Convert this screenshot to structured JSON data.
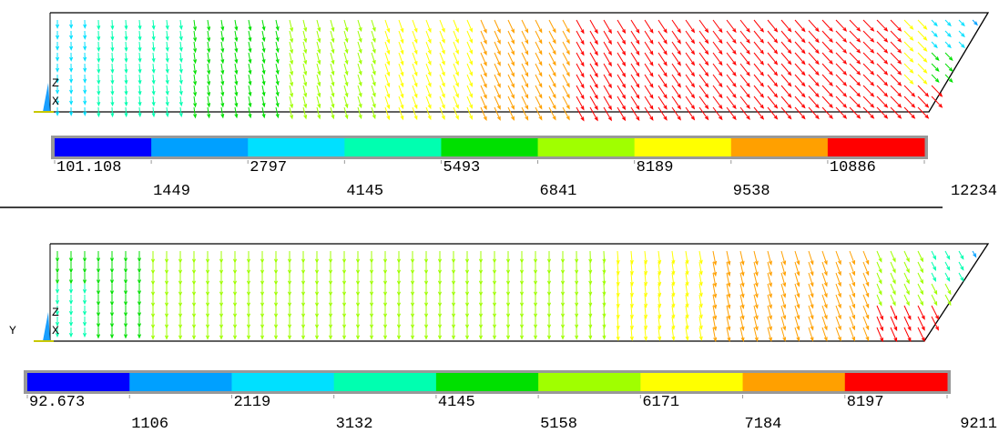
{
  "legend_colors": [
    "#0000ff",
    "#00a0ff",
    "#00e0ff",
    "#00ffb0",
    "#00e000",
    "#a0ff00",
    "#ffff00",
    "#ffa000",
    "#ff0000"
  ],
  "panels": [
    {
      "axis_labels": [
        "Z",
        "X"
      ],
      "legend_labels": [
        "101.108",
        "1449",
        "2797",
        "4145",
        "5493",
        "6841",
        "8189",
        "9538",
        "10886",
        "12234"
      ]
    },
    {
      "axis_labels": [
        "Y",
        "Z",
        "X"
      ],
      "legend_labels": [
        "92.673",
        "1106",
        "2119",
        "3132",
        "4145",
        "5158",
        "6171",
        "7184",
        "8197",
        "9211"
      ]
    }
  ]
}
